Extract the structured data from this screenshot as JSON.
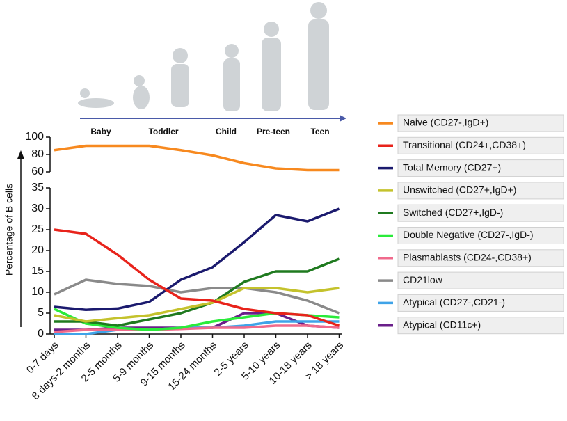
{
  "chart_data": {
    "type": "line",
    "y_label": "Percentage of B cells",
    "stages": [
      "Baby",
      "Toddler",
      "Child",
      "Pre-teen",
      "Teen"
    ],
    "categories": [
      "0-7 days",
      "8 days-2 months",
      "2-5 months",
      "5-9 months",
      "9-15 months",
      "15-24 months",
      "2-5 years",
      "5-10 years",
      "10-18 years",
      "> 18 years"
    ],
    "ylim": [
      0,
      35
    ],
    "yticks": [
      0,
      5,
      10,
      15,
      20,
      25,
      30,
      35
    ],
    "upper_ylim": [
      60,
      100
    ],
    "upper_yticks": [
      60,
      80,
      100
    ],
    "series": [
      {
        "name": "Naive (CD27-,IgD+)",
        "color": "#f7891f",
        "values": [
          85,
          90,
          90,
          90,
          85,
          79,
          70,
          64,
          62,
          62
        ]
      },
      {
        "name": "Transitional (CD24+,CD38+)",
        "color": "#e8231b",
        "values": [
          25,
          24,
          19,
          13,
          8.5,
          8,
          6,
          5,
          4.5,
          2
        ]
      },
      {
        "name": "Total Memory (CD27+)",
        "color": "#1b1a6e",
        "values": [
          6.5,
          5.8,
          6.1,
          7.7,
          13,
          16,
          22,
          28.5,
          27,
          30
        ]
      },
      {
        "name": "Unswitched (CD27+,IgD+)",
        "color": "#c4c22c",
        "values": [
          4.5,
          3,
          3.8,
          4.5,
          6,
          7.5,
          11,
          11,
          10,
          11
        ]
      },
      {
        "name": "Switched (CD27+,IgD-)",
        "color": "#1f7a1f",
        "values": [
          3,
          3,
          2,
          3.5,
          5,
          7.5,
          12.5,
          15,
          15,
          18
        ]
      },
      {
        "name": "Double Negative (CD27-,IgD-)",
        "color": "#2aeb3a",
        "values": [
          6,
          2.5,
          1.5,
          1,
          1.5,
          3,
          4,
          5,
          4.5,
          4
        ]
      },
      {
        "name": "Plasmablasts (CD24-,CD38+)",
        "color": "#f06a8c",
        "values": [
          0.5,
          1,
          1,
          1,
          1.2,
          1.5,
          1.5,
          2,
          2,
          1.5
        ]
      },
      {
        "name": "CD21low",
        "color": "#8a8a8a",
        "values": [
          9.5,
          13,
          12,
          11.5,
          10,
          11,
          11,
          10,
          8,
          5
        ]
      },
      {
        "name": "Atypical (CD27-,CD21-)",
        "color": "#3fa3e8",
        "values": [
          0,
          0,
          1,
          1,
          1.5,
          1.5,
          2,
          3,
          3,
          3
        ]
      },
      {
        "name": "Atypical (CD11c+)",
        "color": "#6a1f8a",
        "values": [
          1,
          1,
          1.5,
          1.5,
          1.5,
          1.5,
          5,
          5,
          2,
          1.5
        ]
      }
    ]
  }
}
